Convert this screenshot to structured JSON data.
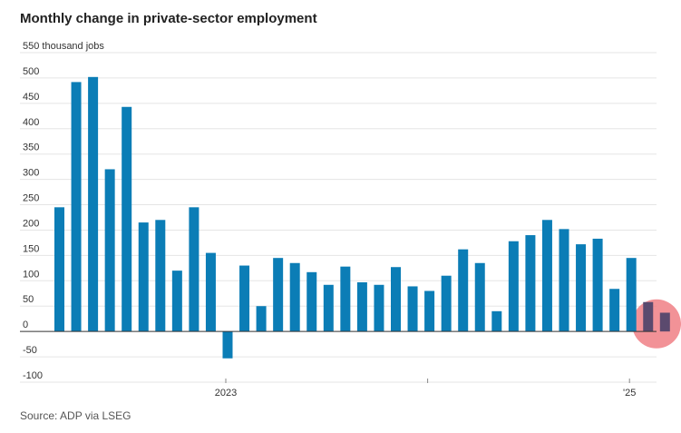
{
  "title": "Monthly change in private-sector employment",
  "source": "Source: ADP via LSEG",
  "colors": {
    "bar": "#0b7db6",
    "highlight_bar": "#5b4a6e",
    "highlight_circle": "#f07f85",
    "grid": "#e5e5e5",
    "zero_line": "#333333"
  },
  "chart_data": {
    "type": "bar",
    "ylabel": "thousand jobs",
    "ylim": [
      -100,
      550
    ],
    "yticks": [
      -100,
      -50,
      0,
      50,
      100,
      150,
      200,
      250,
      300,
      350,
      400,
      450,
      500,
      550
    ],
    "ytick_labels": [
      "-100",
      "-50",
      "0",
      "50",
      "100",
      "150",
      "200",
      "250",
      "300",
      "350",
      "400",
      "450",
      "500",
      "550 thousand jobs"
    ],
    "x_labels": [
      {
        "index": 10,
        "label": "2023"
      },
      {
        "index": 22,
        "label": ""
      },
      {
        "index": 34,
        "label": "'25"
      }
    ],
    "values": [
      245,
      492,
      502,
      320,
      443,
      215,
      220,
      120,
      245,
      155,
      -53,
      130,
      50,
      145,
      135,
      117,
      92,
      128,
      97,
      92,
      127,
      89,
      80,
      110,
      162,
      135,
      40,
      178,
      190,
      220,
      202,
      172,
      183,
      84,
      145,
      58,
      37
    ],
    "highlighted_indices": [
      35,
      36
    ],
    "grid": true
  }
}
